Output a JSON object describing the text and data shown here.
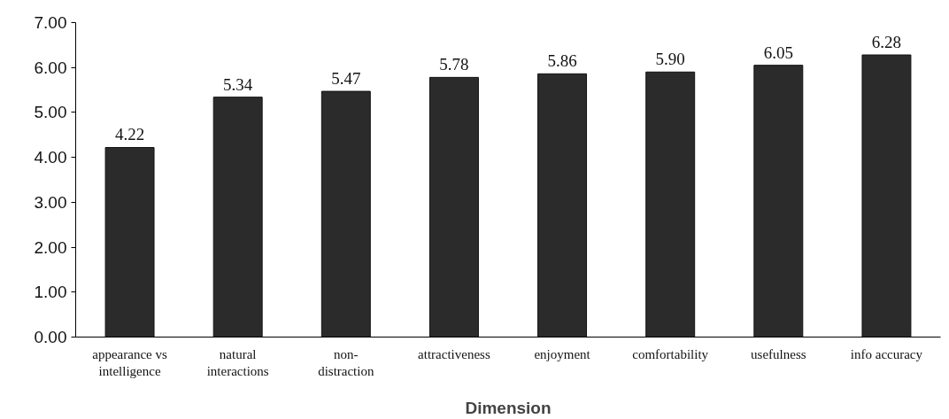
{
  "chart_data": {
    "type": "bar",
    "xlabel": "Dimension",
    "categories": [
      "appearance vs\nintelligence",
      "natural\ninteractions",
      "non-\ndistraction",
      "attractiveness",
      "enjoyment",
      "comfortability",
      "usefulness",
      "info accuracy"
    ],
    "values": [
      4.22,
      5.34,
      5.47,
      5.78,
      5.86,
      5.9,
      6.05,
      6.28
    ],
    "value_labels": [
      "4.22",
      "5.34",
      "5.47",
      "5.78",
      "5.86",
      "5.90",
      "6.05",
      "6.28"
    ],
    "color": "#2b2b2b",
    "ylim": [
      0,
      7
    ],
    "yticks": [
      {
        "value": 0,
        "label": "0.00"
      },
      {
        "value": 1,
        "label": "1.00"
      },
      {
        "value": 2,
        "label": "2.00"
      },
      {
        "value": 3,
        "label": "3.00"
      },
      {
        "value": 4,
        "label": "4.00"
      },
      {
        "value": 5,
        "label": "5.00"
      },
      {
        "value": 6,
        "label": "6.00"
      },
      {
        "value": 7,
        "label": "7.00"
      }
    ],
    "grid": false
  }
}
